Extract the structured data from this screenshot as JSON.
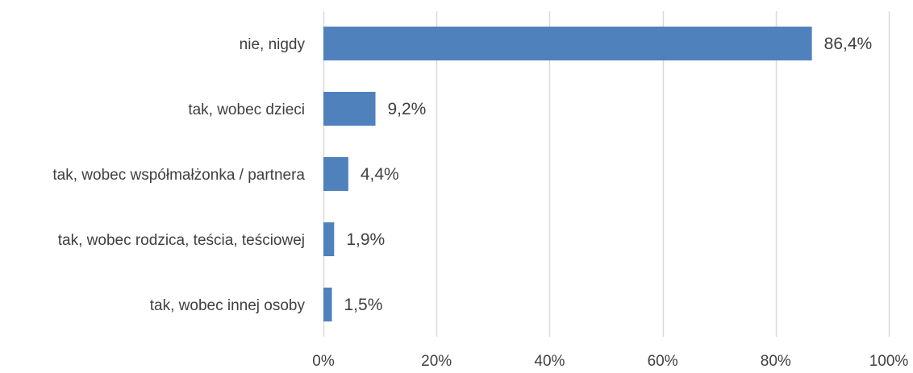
{
  "chart_data": {
    "type": "bar",
    "orientation": "horizontal",
    "categories": [
      "nie, nigdy",
      "tak, wobec dzieci",
      "tak, wobec współmałżonka / partnera",
      "tak, wobec rodzica, teścia, teściowej",
      "tak, wobec innej osoby"
    ],
    "values": [
      86.4,
      9.2,
      4.4,
      1.9,
      1.5
    ],
    "data_labels": [
      "86,4%",
      "9,2%",
      "4,4%",
      "1,9%",
      "1,5%"
    ],
    "xlim": [
      0,
      100
    ],
    "x_ticks": [
      0,
      20,
      40,
      60,
      80,
      100
    ],
    "x_tick_labels": [
      "0%",
      "20%",
      "40%",
      "60%",
      "80%",
      "100%"
    ],
    "grid": "vertical",
    "legend": "none",
    "colors": {
      "bar": "#4f81bd",
      "grid": "#d9d9d9",
      "text": "#404040"
    }
  }
}
